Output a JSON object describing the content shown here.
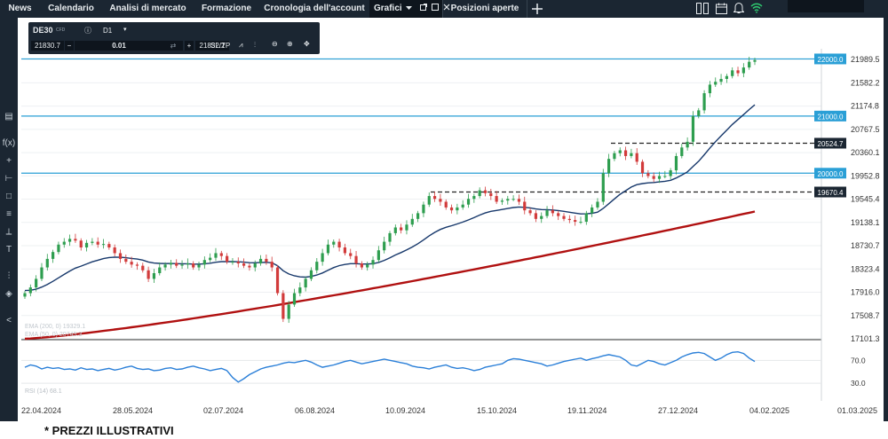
{
  "nav": {
    "tabs": [
      {
        "label": "News",
        "active": false
      },
      {
        "label": "Calendario",
        "active": false
      },
      {
        "label": "Analisi di mercato",
        "active": false
      },
      {
        "label": "Formazione",
        "active": false
      },
      {
        "label": "Cronologia dell'account",
        "active": false
      },
      {
        "label": "Grafici",
        "active": true
      },
      {
        "label": "Posizioni aperte",
        "active": false
      }
    ],
    "icons": [
      "dropdown-icon",
      "popout-icon",
      "maximize-icon",
      "close-icon",
      "add-tab-icon",
      "columns-icon",
      "calendar-icon",
      "bell-icon",
      "wifi-icon"
    ]
  },
  "toolbar": {
    "symbol": "DE30",
    "symbol_type": "CFD",
    "timeframe": "D1",
    "sell_price": "21830.7",
    "quantity": "0.01",
    "buy_price": "21832.2",
    "sltp_label": "SL/TP"
  },
  "left_tools": [
    "panel-icon",
    "function-icon",
    "crosshair-icon",
    "line-icon",
    "rectangle-icon",
    "fib-icon",
    "measure-icon",
    "text-icon",
    "bars-icon",
    "layers-icon",
    "share-icon"
  ],
  "chart_data": {
    "type": "candlestick",
    "symbol": "DE30",
    "timeframe": "D1",
    "x_labels": [
      "22.04.2024",
      "28.05.2024",
      "02.07.2024",
      "06.08.2024",
      "10.09.2024",
      "15.10.2024",
      "19.11.2024",
      "27.12.2024",
      "04.02.2025",
      "01.03.2025"
    ],
    "y_ticks": [
      "21989.5",
      "21582.2",
      "21174.8",
      "20767.5",
      "20360.1",
      "19952.8",
      "19545.4",
      "19138.1",
      "18730.7",
      "18323.4",
      "17916.0",
      "17508.7",
      "17101.3"
    ],
    "ylim": [
      17101.3,
      22100
    ],
    "horizontal_lines": [
      {
        "value": 22000.0,
        "label": "22000.0",
        "style": "solid",
        "color": "#2a9fd6"
      },
      {
        "value": 21000.0,
        "label": "21000.0",
        "style": "solid",
        "color": "#2a9fd6"
      },
      {
        "value": 20000.0,
        "label": "20000.0",
        "style": "solid",
        "color": "#2a9fd6"
      },
      {
        "value": 20524.7,
        "label": "20524.7",
        "style": "dashed",
        "color": "#222222"
      },
      {
        "value": 19670.4,
        "label": "19670.4",
        "style": "dashed",
        "color": "#222222"
      }
    ],
    "indicators": [
      {
        "name": "EMA (200, 0)",
        "value": "19329.1",
        "color": "#b01010"
      },
      {
        "name": "EMA (50, 0)",
        "value": "20745.3",
        "color": "#17386b"
      }
    ],
    "close_series": [
      17900,
      18000,
      18150,
      18350,
      18500,
      18620,
      18750,
      18800,
      18850,
      18820,
      18700,
      18780,
      18800,
      18750,
      18760,
      18700,
      18600,
      18500,
      18450,
      18400,
      18380,
      18300,
      18150,
      18250,
      18350,
      18400,
      18430,
      18380,
      18400,
      18420,
      18350,
      18400,
      18480,
      18520,
      18600,
      18550,
      18450,
      18450,
      18420,
      18380,
      18350,
      18420,
      18500,
      18450,
      18350,
      17900,
      17450,
      17700,
      17900,
      18000,
      18150,
      18300,
      18450,
      18600,
      18750,
      18800,
      18700,
      18600,
      18550,
      18420,
      18350,
      18400,
      18480,
      18650,
      18800,
      18950,
      19050,
      19000,
      19100,
      19200,
      19300,
      19450,
      19600,
      19550,
      19500,
      19400,
      19350,
      19400,
      19450,
      19550,
      19600,
      19700,
      19650,
      19600,
      19500,
      19520,
      19550,
      19550,
      19500,
      19350,
      19300,
      19200,
      19250,
      19350,
      19300,
      19250,
      19200,
      19180,
      19150,
      19150,
      19300,
      19400,
      19500,
      20000,
      20250,
      20350,
      20400,
      20300,
      20350,
      20200,
      20000,
      19950,
      19900,
      19950,
      19950,
      20050,
      20300,
      20450,
      20550,
      21000,
      21100,
      21400,
      21550,
      21600,
      21650,
      21700,
      21800,
      21750,
      21850,
      21950,
      21980
    ],
    "ema50_start": 17950,
    "ema50_end": 20745.3,
    "ema200_start": 17101.3,
    "ema200_end": 19329.1,
    "rsi": {
      "name": "RSI (14)",
      "value": "68.1",
      "levels": [
        70,
        30
      ],
      "y_ticks": [
        "70.0",
        "30.0"
      ],
      "color": "#2a7fd8",
      "values": [
        58,
        62,
        60,
        55,
        58,
        56,
        57,
        54,
        55,
        53,
        57,
        54,
        55,
        52,
        54,
        56,
        53,
        55,
        58,
        60,
        56,
        54,
        55,
        52,
        53,
        56,
        57,
        54,
        55,
        58,
        60,
        57,
        55,
        52,
        54,
        56,
        52,
        40,
        32,
        38,
        45,
        50,
        55,
        58,
        60,
        62,
        65,
        67,
        66,
        68,
        70,
        67,
        62,
        58,
        60,
        62,
        65,
        68,
        70,
        67,
        64,
        66,
        68,
        70,
        72,
        70,
        68,
        66,
        64,
        60,
        58,
        57,
        55,
        58,
        60,
        62,
        58,
        56,
        57,
        55,
        52,
        54,
        58,
        60,
        62,
        64,
        70,
        73,
        72,
        70,
        68,
        66,
        64,
        60,
        62,
        65,
        68,
        70,
        72,
        74,
        70,
        73,
        75,
        78,
        80,
        78,
        76,
        70,
        62,
        60,
        65,
        70,
        68,
        64,
        62,
        66,
        70,
        76,
        80,
        83,
        84,
        82,
        76,
        70,
        74,
        80,
        84,
        85,
        82,
        74,
        68
      ]
    }
  },
  "footer": {
    "disclaimer": "* PREZZI ILLUSTRATIVI"
  }
}
